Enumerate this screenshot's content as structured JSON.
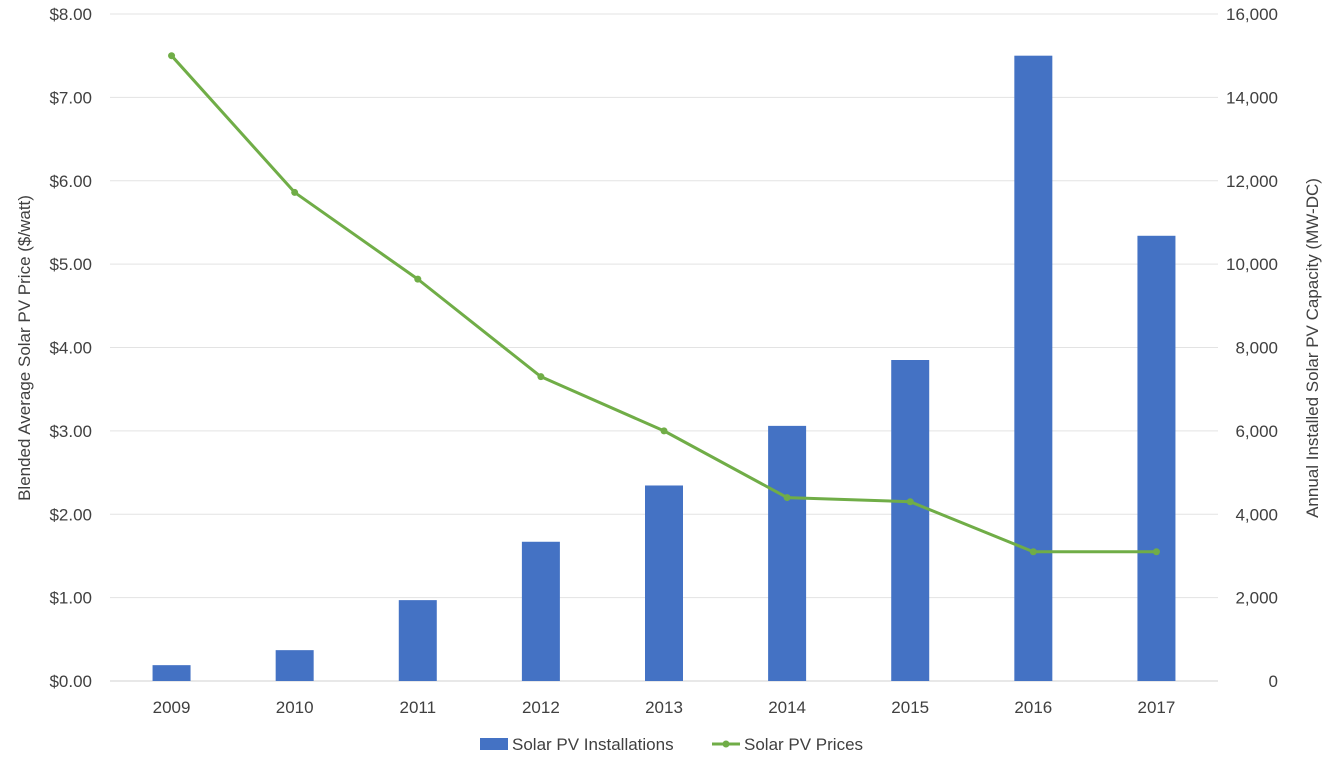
{
  "chart_data": {
    "type": "bar",
    "categories": [
      "2009",
      "2010",
      "2011",
      "2012",
      "2013",
      "2014",
      "2015",
      "2016",
      "2017"
    ],
    "series": [
      {
        "name": "Solar PV Installations",
        "type": "bar",
        "axis": "right",
        "color": "#4472C4",
        "values": [
          380,
          740,
          1940,
          3340,
          4690,
          6120,
          7700,
          15000,
          10680
        ]
      },
      {
        "name": "Solar PV Prices",
        "type": "line",
        "axis": "left",
        "color": "#70AD47",
        "values": [
          7.5,
          5.86,
          4.82,
          3.65,
          3.0,
          2.2,
          2.15,
          1.55,
          1.55
        ]
      }
    ],
    "ylabel_left": "Blended Average Solar PV Price ($/watt)",
    "ylabel_right": "Annual Installed Solar PV Capacity (MW-DC)",
    "ylim_left": [
      0,
      8
    ],
    "ylim_right": [
      0,
      16000
    ],
    "left_ticks": [
      "$0.00",
      "$1.00",
      "$2.00",
      "$3.00",
      "$4.00",
      "$5.00",
      "$6.00",
      "$7.00",
      "$8.00"
    ],
    "right_ticks": [
      "0",
      "2,000",
      "4,000",
      "6,000",
      "8,000",
      "10,000",
      "12,000",
      "14,000",
      "16,000"
    ],
    "grid": true,
    "legend_position": "bottom-center"
  }
}
